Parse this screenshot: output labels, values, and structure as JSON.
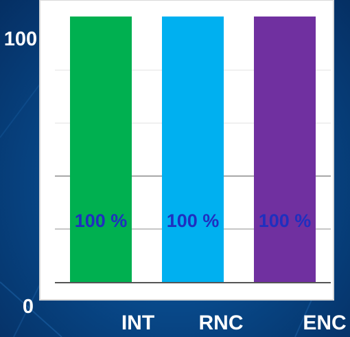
{
  "chart_data": {
    "type": "bar",
    "categories": [
      "INT",
      "RNC",
      "ENC"
    ],
    "values": [
      100,
      100,
      100
    ],
    "data_labels": [
      "100 %",
      "100 %",
      "100 %"
    ],
    "y_tick_labels": [
      "0",
      "100"
    ],
    "ylim": [
      0,
      100
    ],
    "grid": true,
    "colors": {
      "bars": [
        "#00b050",
        "#00b0f0",
        "#7030a0"
      ],
      "data_label": "#1f2fbf",
      "plot_background": "#ffffff",
      "gridline": "#8c8c8c",
      "tick_text": "#ffffff"
    }
  }
}
